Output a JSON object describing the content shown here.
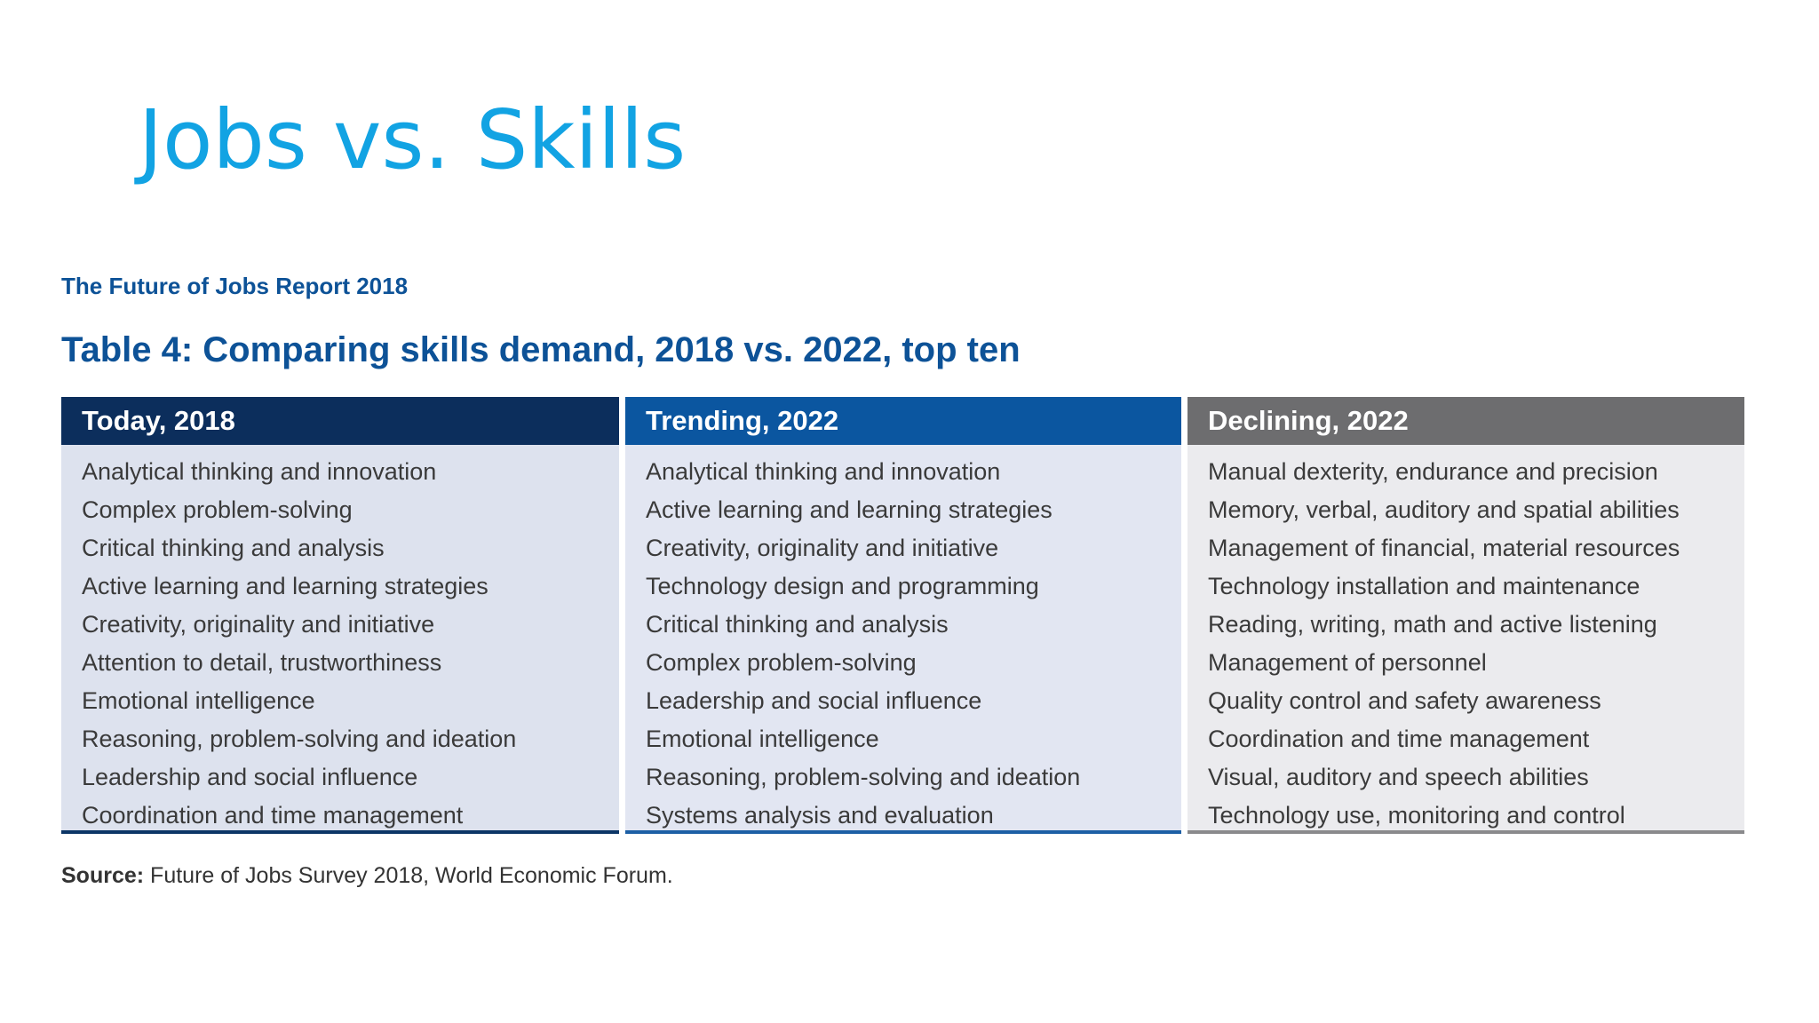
{
  "slide": {
    "title": "Jobs vs. Skills"
  },
  "report": {
    "label": "The Future of Jobs Report 2018",
    "table_caption": "Table 4: Comparing skills demand, 2018 vs. 2022, top ten"
  },
  "table": {
    "columns": [
      {
        "header": "Today, 2018",
        "items": [
          "Analytical thinking and innovation",
          "Complex problem-solving",
          "Critical thinking and analysis",
          "Active learning and learning strategies",
          "Creativity, originality and initiative",
          "Attention to detail, trustworthiness",
          "Emotional intelligence",
          "Reasoning, problem-solving and ideation",
          "Leadership and social influence",
          "Coordination and time management"
        ]
      },
      {
        "header": "Trending, 2022",
        "items": [
          "Analytical thinking and innovation",
          "Active learning and learning strategies",
          "Creativity, originality and initiative",
          "Technology design and programming",
          "Critical thinking and analysis",
          "Complex problem-solving",
          "Leadership and social influence",
          "Emotional intelligence",
          "Reasoning, problem-solving and ideation",
          "Systems analysis and evaluation"
        ]
      },
      {
        "header": "Declining, 2022",
        "items": [
          "Manual dexterity, endurance and precision",
          "Memory, verbal, auditory and spatial abilities",
          "Management of financial, material resources",
          "Technology installation and maintenance",
          "Reading, writing, math and active listening",
          "Management of personnel",
          "Quality control and safety awareness",
          "Coordination and time management",
          "Visual, auditory and speech abilities",
          "Technology use, monitoring and control"
        ]
      }
    ]
  },
  "source": {
    "label": "Source:",
    "text": "Future of Jobs Survey 2018, World Economic Forum."
  },
  "colors": {
    "title": "#12a3e3",
    "report_blue": "#0d5297",
    "header_today": "#0c2e5c",
    "header_trending": "#0b56a0",
    "header_declining": "#6d6d6f"
  }
}
